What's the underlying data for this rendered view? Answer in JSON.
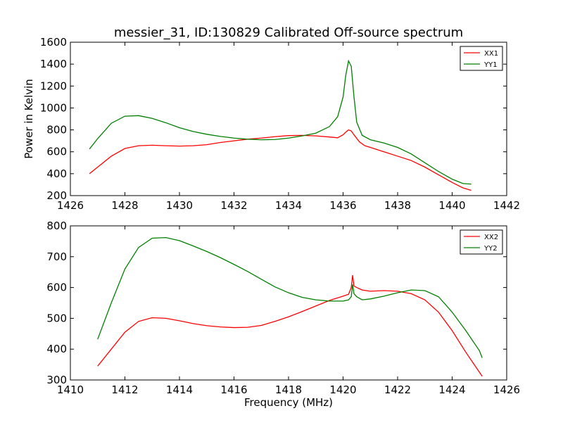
{
  "chart_data": [
    {
      "type": "line",
      "title": "messier_31, ID:130829 Calibrated Off-source spectrum",
      "xlabel": "",
      "ylabel": "Power in Kelvin",
      "xlim": [
        1426,
        1442
      ],
      "ylim": [
        200,
        1600
      ],
      "xticks": [
        1426,
        1428,
        1430,
        1432,
        1434,
        1436,
        1438,
        1440,
        1442
      ],
      "yticks": [
        200,
        400,
        600,
        800,
        1000,
        1200,
        1400,
        1600
      ],
      "legend_position": "top-right",
      "grid": false,
      "series": [
        {
          "name": "XX1",
          "color": "#ff0000",
          "x": [
            1426.7,
            1427.0,
            1427.5,
            1428.0,
            1428.5,
            1429.0,
            1429.5,
            1430.0,
            1430.5,
            1431.0,
            1431.5,
            1432.0,
            1432.5,
            1433.0,
            1433.5,
            1434.0,
            1434.5,
            1435.0,
            1435.5,
            1435.8,
            1436.0,
            1436.1,
            1436.2,
            1436.3,
            1436.4,
            1436.6,
            1436.8,
            1437.0,
            1437.5,
            1438.0,
            1438.5,
            1439.0,
            1439.5,
            1440.0,
            1440.4,
            1440.7
          ],
          "y": [
            400,
            460,
            560,
            630,
            655,
            660,
            655,
            652,
            655,
            665,
            685,
            700,
            715,
            725,
            738,
            748,
            750,
            745,
            735,
            728,
            755,
            780,
            800,
            790,
            755,
            690,
            655,
            640,
            600,
            560,
            520,
            460,
            390,
            320,
            270,
            248
          ]
        },
        {
          "name": "YY1",
          "color": "#008000",
          "x": [
            1426.7,
            1427.0,
            1427.5,
            1428.0,
            1428.5,
            1429.0,
            1429.5,
            1430.0,
            1430.5,
            1431.0,
            1431.5,
            1432.0,
            1432.5,
            1433.0,
            1433.5,
            1434.0,
            1434.5,
            1435.0,
            1435.5,
            1435.8,
            1436.0,
            1436.1,
            1436.2,
            1436.3,
            1436.4,
            1436.5,
            1436.7,
            1437.0,
            1437.5,
            1438.0,
            1438.5,
            1439.0,
            1439.5,
            1440.0,
            1440.4,
            1440.7
          ],
          "y": [
            625,
            720,
            860,
            925,
            930,
            905,
            865,
            820,
            785,
            760,
            740,
            725,
            715,
            710,
            712,
            725,
            745,
            770,
            830,
            920,
            1100,
            1300,
            1430,
            1380,
            1100,
            870,
            750,
            710,
            680,
            640,
            580,
            500,
            420,
            350,
            310,
            305
          ]
        }
      ]
    },
    {
      "type": "line",
      "title": "",
      "xlabel": "Frequency (MHz)",
      "ylabel": "",
      "xlim": [
        1410,
        1426
      ],
      "ylim": [
        300,
        800
      ],
      "xticks": [
        1410,
        1412,
        1414,
        1416,
        1418,
        1420,
        1422,
        1424,
        1426
      ],
      "yticks": [
        300,
        400,
        500,
        600,
        700,
        800
      ],
      "legend_position": "top-right",
      "grid": false,
      "series": [
        {
          "name": "XX2",
          "color": "#ff0000",
          "x": [
            1411.0,
            1411.5,
            1412.0,
            1412.5,
            1413.0,
            1413.5,
            1414.0,
            1414.5,
            1415.0,
            1415.5,
            1416.0,
            1416.5,
            1417.0,
            1417.5,
            1418.0,
            1418.5,
            1419.0,
            1419.5,
            1420.0,
            1420.2,
            1420.3,
            1420.35,
            1420.4,
            1420.5,
            1420.7,
            1421.0,
            1421.5,
            1422.0,
            1422.5,
            1423.0,
            1423.5,
            1424.0,
            1424.5,
            1425.0,
            1425.1
          ],
          "y": [
            345,
            400,
            455,
            490,
            502,
            500,
            492,
            483,
            476,
            472,
            470,
            471,
            477,
            490,
            505,
            522,
            540,
            558,
            572,
            578,
            600,
            640,
            605,
            600,
            592,
            588,
            590,
            588,
            580,
            560,
            520,
            460,
            390,
            325,
            312
          ]
        },
        {
          "name": "YY2",
          "color": "#008000",
          "x": [
            1411.0,
            1411.5,
            1412.0,
            1412.5,
            1413.0,
            1413.5,
            1414.0,
            1414.5,
            1415.0,
            1415.5,
            1416.0,
            1416.5,
            1417.0,
            1417.5,
            1418.0,
            1418.5,
            1419.0,
            1419.5,
            1420.0,
            1420.2,
            1420.3,
            1420.35,
            1420.4,
            1420.5,
            1420.7,
            1421.0,
            1421.5,
            1422.0,
            1422.5,
            1423.0,
            1423.5,
            1424.0,
            1424.5,
            1425.0,
            1425.1
          ],
          "y": [
            432,
            550,
            660,
            730,
            760,
            762,
            752,
            735,
            717,
            697,
            675,
            652,
            627,
            602,
            583,
            568,
            560,
            556,
            556,
            560,
            570,
            610,
            580,
            570,
            560,
            563,
            572,
            583,
            592,
            590,
            570,
            520,
            460,
            395,
            372
          ]
        }
      ]
    }
  ]
}
